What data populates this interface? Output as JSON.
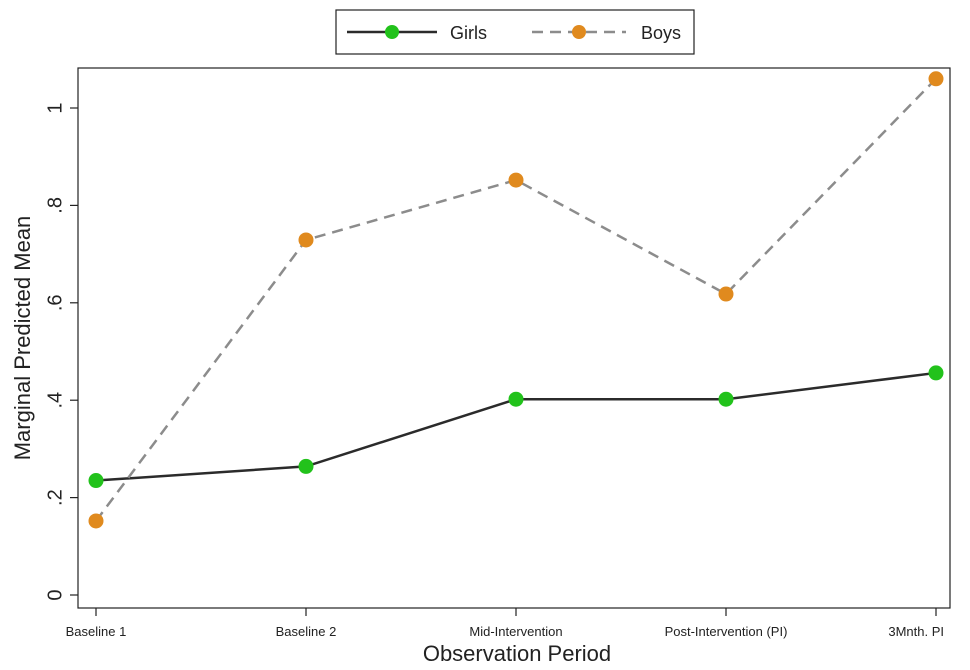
{
  "chart_data": {
    "type": "line",
    "title": "",
    "xlabel": "Observation Period",
    "ylabel": "Marginal Predicted Mean",
    "categories": [
      "Baseline 1",
      "Baseline 2",
      "Mid-Intervention",
      "Post-Intervention (PI)",
      "3Mnth. PI"
    ],
    "ylim": [
      0,
      1.06
    ],
    "yticks": [
      0,
      0.2,
      0.4,
      0.6,
      0.8,
      1
    ],
    "ytick_labels": [
      "0",
      ".2",
      ".4",
      ".6",
      ".8",
      "1"
    ],
    "grid": false,
    "legend": "top-center",
    "series": [
      {
        "name": "Girls",
        "values": [
          0.235,
          0.264,
          0.402,
          0.402,
          0.456
        ],
        "line_color": "#2b2b2b",
        "marker_color": "#22c21b",
        "line_style": "solid"
      },
      {
        "name": "Boys",
        "values": [
          0.152,
          0.729,
          0.852,
          0.618,
          1.06
        ],
        "line_color": "#8c8c8c",
        "marker_color": "#e08a1e",
        "line_style": "dashed"
      }
    ]
  }
}
